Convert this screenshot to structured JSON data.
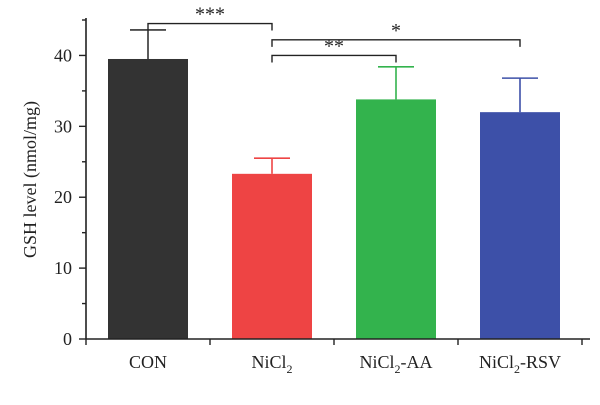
{
  "chart_data": {
    "type": "bar",
    "title": "",
    "xlabel": "",
    "ylabel": "GSH level (nmol/mg)",
    "ylim": [
      0,
      45
    ],
    "yticks": [
      0,
      10,
      20,
      30,
      40
    ],
    "grid": false,
    "legend": "none",
    "categories": [
      {
        "main": "CON",
        "sub": "",
        "suffix": ""
      },
      {
        "main": "NiCl",
        "sub": "2",
        "suffix": ""
      },
      {
        "main": "NiCl",
        "sub": "2",
        "suffix": "-AA"
      },
      {
        "main": "NiCl",
        "sub": "2",
        "suffix": "-RSV"
      }
    ],
    "values": [
      39.5,
      23.3,
      33.8,
      32.0
    ],
    "errors": [
      4.1,
      2.2,
      4.6,
      4.8
    ],
    "colors": [
      "#333333",
      "#ee4444",
      "#33b34d",
      "#3d50a8"
    ],
    "significance": [
      {
        "from": 0,
        "to": 1,
        "y": 44.5,
        "label": "***"
      },
      {
        "from": 1,
        "to": 3,
        "y": 42.2,
        "label": "*"
      },
      {
        "from": 1,
        "to": 2,
        "y": 40.0,
        "label": "**"
      }
    ]
  }
}
